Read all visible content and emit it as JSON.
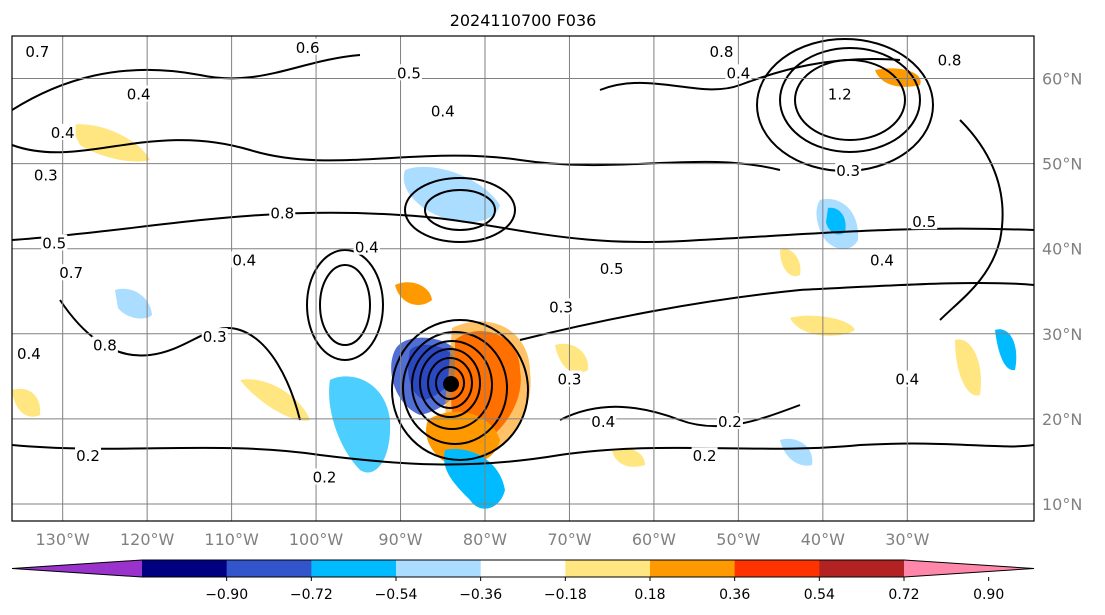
{
  "title": "2024110700 F036",
  "map": {
    "longitude_labels": [
      "130°W",
      "120°W",
      "110°W",
      "100°W",
      "90°W",
      "80°W",
      "70°W",
      "60°W",
      "50°W",
      "40°W",
      "30°W"
    ],
    "longitude_values": [
      -130,
      -120,
      -110,
      -100,
      -90,
      -80,
      -70,
      -60,
      -50,
      -40,
      -30
    ],
    "latitude_labels": [
      "60°N",
      "50°N",
      "40°N",
      "30°N",
      "20°N",
      "10°N"
    ],
    "latitude_values": [
      60,
      50,
      40,
      30,
      20,
      10
    ],
    "extent": {
      "lon_min": -136,
      "lon_max": -15,
      "lat_min": 8,
      "lat_max": 65
    },
    "grid": true,
    "contour_labels": [
      {
        "text": "0.7",
        "lon": -133,
        "lat": 63
      },
      {
        "text": "0.4",
        "lon": -130,
        "lat": 53.5
      },
      {
        "text": "0.4",
        "lon": -121,
        "lat": 58
      },
      {
        "text": "0.6",
        "lon": -101,
        "lat": 63.5
      },
      {
        "text": "0.5",
        "lon": -89,
        "lat": 60.5
      },
      {
        "text": "0.4",
        "lon": -85,
        "lat": 56
      },
      {
        "text": "0.8",
        "lon": -52,
        "lat": 63
      },
      {
        "text": "0.4",
        "lon": -50,
        "lat": 60.5
      },
      {
        "text": "0.8",
        "lon": -25,
        "lat": 62
      },
      {
        "text": "0.3",
        "lon": -132,
        "lat": 48.5
      },
      {
        "text": "0.5",
        "lon": -131,
        "lat": 40.5
      },
      {
        "text": "1.2",
        "lon": -38,
        "lat": 58
      },
      {
        "text": "0.3",
        "lon": -37,
        "lat": 49
      },
      {
        "text": "0.5",
        "lon": -28,
        "lat": 43
      },
      {
        "text": "0.4",
        "lon": -33,
        "lat": 38.5
      },
      {
        "text": "0.4",
        "lon": -108.5,
        "lat": 38.5
      },
      {
        "text": "0.4",
        "lon": -94,
        "lat": 40
      },
      {
        "text": "0.8",
        "lon": -104,
        "lat": 44
      },
      {
        "text": "0.5",
        "lon": -65,
        "lat": 37.5
      },
      {
        "text": "0.3",
        "lon": -71,
        "lat": 33
      },
      {
        "text": "0.7",
        "lon": -129,
        "lat": 37
      },
      {
        "text": "0.4",
        "lon": -134,
        "lat": 27.5
      },
      {
        "text": "0.8",
        "lon": -125,
        "lat": 28.5
      },
      {
        "text": "0.3",
        "lon": -112,
        "lat": 29.5
      },
      {
        "text": "0.3",
        "lon": -70,
        "lat": 24.5
      },
      {
        "text": "0.4",
        "lon": -66,
        "lat": 19.5
      },
      {
        "text": "0.2",
        "lon": -51,
        "lat": 19.5
      },
      {
        "text": "0.2",
        "lon": -54,
        "lat": 15.5
      },
      {
        "text": "0.4",
        "lon": -30,
        "lat": 24.5
      },
      {
        "text": "0.2",
        "lon": -127,
        "lat": 15.5
      },
      {
        "text": "0.2",
        "lon": -99,
        "lat": 13
      }
    ]
  },
  "colorbar": {
    "ticks": [
      "−0.90",
      "−0.72",
      "−0.54",
      "−0.36",
      "−0.18",
      "0.18",
      "0.36",
      "0.54",
      "0.72",
      "0.90"
    ],
    "colors": [
      "#9933cc",
      "#000080",
      "#3355cc",
      "#00bbff",
      "#aaddff",
      "#ffffff",
      "#ffe680",
      "#ff9900",
      "#ff3300",
      "#b22222",
      "#ff88aa"
    ],
    "extend": "both"
  }
}
